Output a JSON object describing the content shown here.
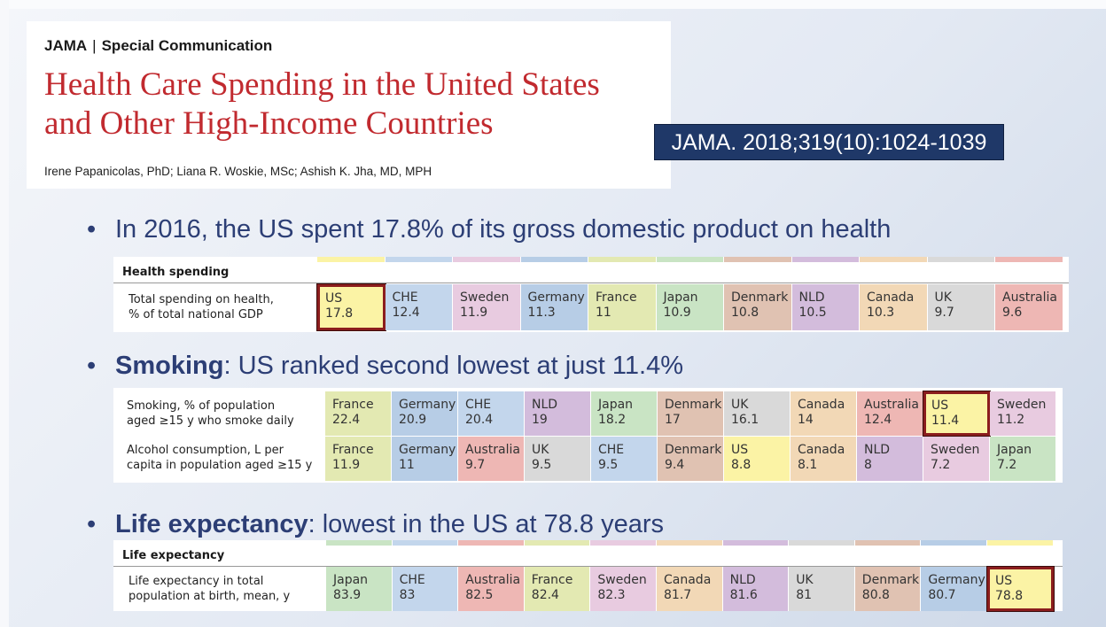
{
  "header": {
    "journal": "JAMA",
    "section": "Special Communication",
    "title_line1": "Health Care Spending in the United States",
    "title_line2": "and Other High-Income Countries",
    "authors": "Irene Papanicolas, PhD; Liana R. Woskie, MSc; Ashish K. Jha, MD, MPH"
  },
  "citation": "JAMA. 2018;319(10):1024-1039",
  "bullets": {
    "b1": "In 2016, the US spent 17.8% of its gross domestic product on health",
    "b2_bold": "Smoking",
    "b2_rest": ":  US ranked second lowest at just 11.4%",
    "b3_bold": "Life expectancy",
    "b3_rest": ":  lowest in the US at 78.8 years"
  },
  "colors": {
    "US": "#fbf3a5",
    "CHE": "#c3d6ec",
    "Sweden": "#e8cbe0",
    "Germany": "#b7cde6",
    "France": "#e3e9b2",
    "Japan": "#c9e4c4",
    "Denmark": "#e0c2b2",
    "NLD": "#d3bcdc",
    "Canada": "#f2d8b6",
    "UK": "#d9d9d9",
    "Australia": "#eeb7b4"
  },
  "spending_table": {
    "section": "Health spending",
    "row": {
      "label1": "Total spending on health,",
      "label2": "% of total national GDP",
      "cells": [
        {
          "country": "US",
          "value": "17.8",
          "hl": true
        },
        {
          "country": "CHE",
          "value": "12.4"
        },
        {
          "country": "Sweden",
          "value": "11.9"
        },
        {
          "country": "Germany",
          "value": "11.3"
        },
        {
          "country": "France",
          "value": "11"
        },
        {
          "country": "Japan",
          "value": "10.9"
        },
        {
          "country": "Denmark",
          "value": "10.8"
        },
        {
          "country": "NLD",
          "value": "10.5"
        },
        {
          "country": "Canada",
          "value": "10.3"
        },
        {
          "country": "UK",
          "value": "9.7"
        },
        {
          "country": "Australia",
          "value": "9.6"
        }
      ]
    }
  },
  "smoking_table": {
    "rows": [
      {
        "label1": "Smoking, % of population",
        "label2": "aged ≥15 y who smoke daily",
        "cells": [
          {
            "country": "France",
            "value": "22.4"
          },
          {
            "country": "Germany",
            "value": "20.9"
          },
          {
            "country": "CHE",
            "value": "20.4"
          },
          {
            "country": "NLD",
            "value": "19"
          },
          {
            "country": "Japan",
            "value": "18.2"
          },
          {
            "country": "Denmark",
            "value": "17"
          },
          {
            "country": "UK",
            "value": "16.1"
          },
          {
            "country": "Canada",
            "value": "14"
          },
          {
            "country": "Australia",
            "value": "12.4"
          },
          {
            "country": "US",
            "value": "11.4",
            "hl": true
          },
          {
            "country": "Sweden",
            "value": "11.2"
          }
        ]
      },
      {
        "label1": "Alcohol consumption, L per",
        "label2": "capita in population aged ≥15 y",
        "cells": [
          {
            "country": "France",
            "value": "11.9"
          },
          {
            "country": "Germany",
            "value": "11"
          },
          {
            "country": "Australia",
            "value": "9.7"
          },
          {
            "country": "UK",
            "value": "9.5"
          },
          {
            "country": "CHE",
            "value": "9.5"
          },
          {
            "country": "Denmark",
            "value": "9.4"
          },
          {
            "country": "US",
            "value": "8.8"
          },
          {
            "country": "Canada",
            "value": "8.1"
          },
          {
            "country": "NLD",
            "value": "8"
          },
          {
            "country": "Sweden",
            "value": "7.2"
          },
          {
            "country": "Japan",
            "value": "7.2"
          }
        ]
      }
    ]
  },
  "life_table": {
    "section": "Life expectancy",
    "row": {
      "label1": "Life expectancy in total",
      "label2": "population at birth, mean, y",
      "cells": [
        {
          "country": "Japan",
          "value": "83.9"
        },
        {
          "country": "CHE",
          "value": "83"
        },
        {
          "country": "Australia",
          "value": "82.5"
        },
        {
          "country": "France",
          "value": "82.4"
        },
        {
          "country": "Sweden",
          "value": "82.3"
        },
        {
          "country": "Canada",
          "value": "81.7"
        },
        {
          "country": "NLD",
          "value": "81.6"
        },
        {
          "country": "UK",
          "value": "81"
        },
        {
          "country": "Denmark",
          "value": "80.8"
        },
        {
          "country": "Germany",
          "value": "80.7"
        },
        {
          "country": "US",
          "value": "78.8",
          "hl": true
        }
      ]
    }
  }
}
